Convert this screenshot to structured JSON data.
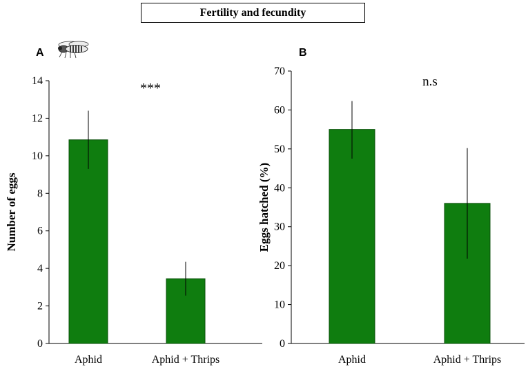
{
  "figure_title": "Fertility and fecundity",
  "panels": {
    "a_letter": "A",
    "b_letter": "B"
  },
  "colors": {
    "bar": "#0f7d0f",
    "bar_stroke": "#0a4f0a"
  },
  "icons": {
    "insect": "hoverfly-icon"
  },
  "chart_data": [
    {
      "type": "bar",
      "title": "",
      "xlabel": "",
      "ylabel": "Number of eggs",
      "categories": [
        "Aphid",
        "Aphid + Thrips"
      ],
      "values": [
        10.85,
        3.45
      ],
      "errors_upper": [
        12.4,
        4.35
      ],
      "errors_lower": [
        9.3,
        2.55
      ],
      "ylim": [
        0,
        14
      ],
      "yticks": [
        0,
        2,
        4,
        6,
        8,
        10,
        12,
        14
      ],
      "annotation": "***"
    },
    {
      "type": "bar",
      "title": "",
      "xlabel": "",
      "ylabel": "Eggs hatched (%)",
      "categories": [
        "Aphid",
        "Aphid + Thrips"
      ],
      "values": [
        55,
        36
      ],
      "errors_upper": [
        62.3,
        50.2
      ],
      "errors_lower": [
        47.5,
        21.8
      ],
      "ylim": [
        0,
        70
      ],
      "yticks": [
        0,
        10,
        20,
        30,
        40,
        50,
        60,
        70
      ],
      "annotation": "n.s"
    }
  ]
}
